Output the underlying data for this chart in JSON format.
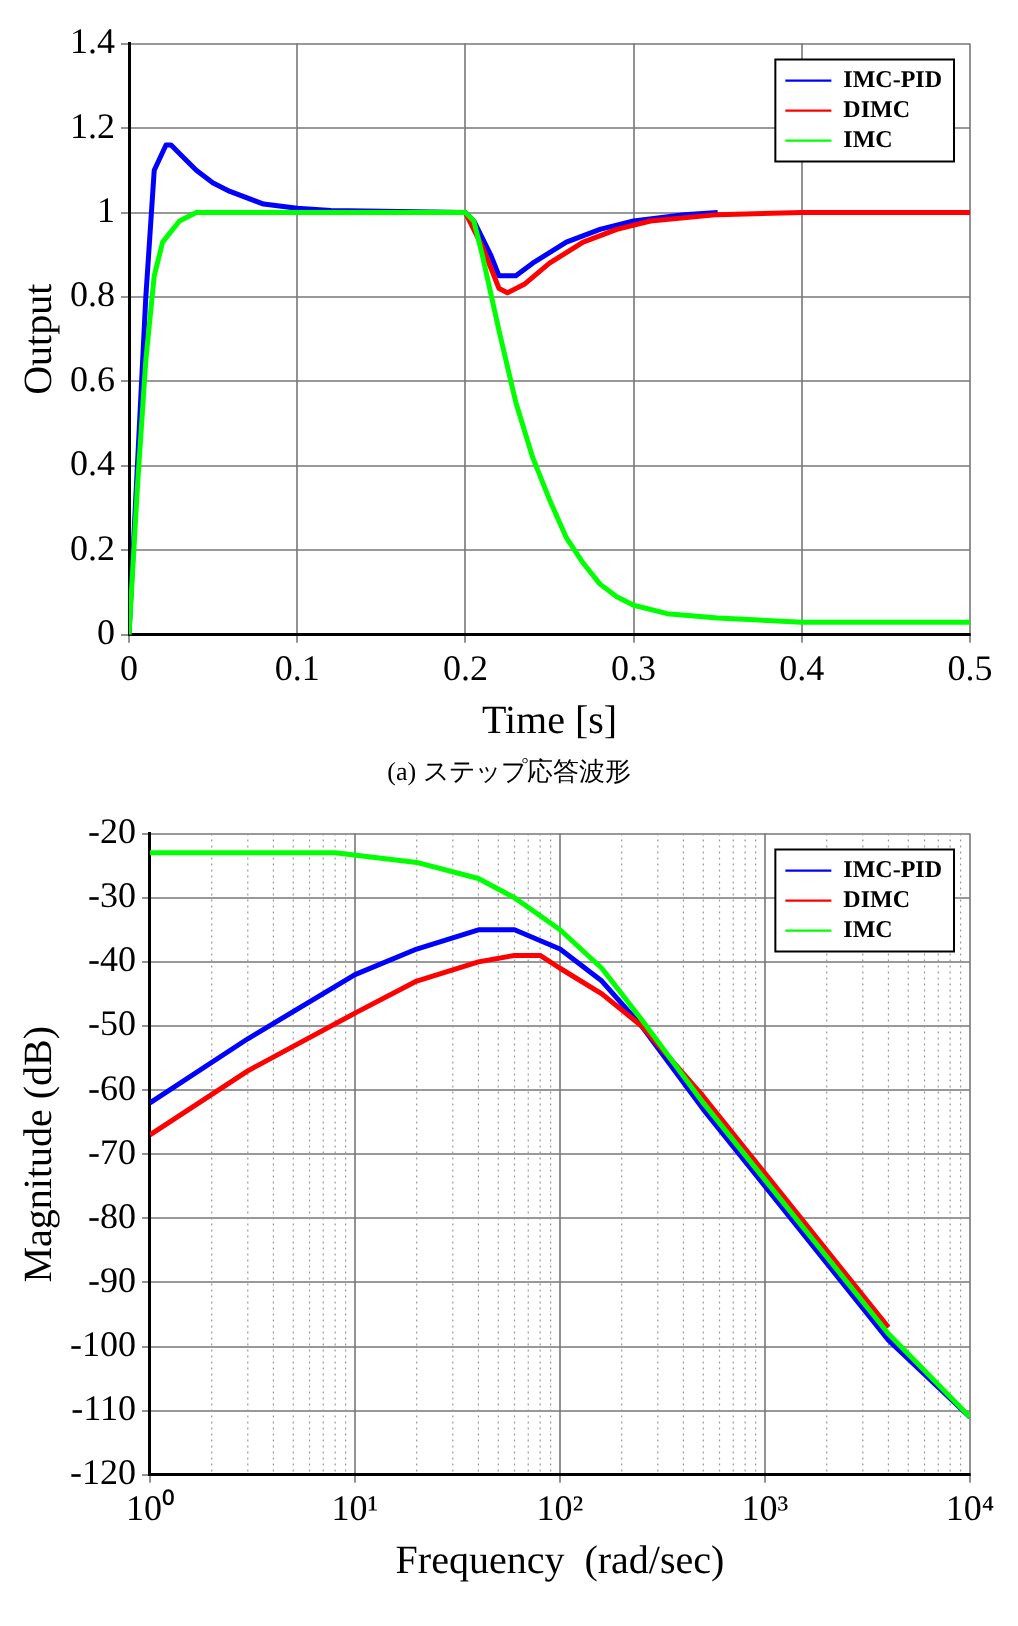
{
  "chart_data": [
    {
      "type": "line",
      "xlabel": "Time [s]",
      "ylabel": "Output",
      "annotations": [
        "(a) ステップ応答波形"
      ],
      "xlim": [
        0,
        0.5
      ],
      "ylim": [
        0,
        1.4
      ],
      "xticks": [
        0,
        0.1,
        0.2,
        0.3,
        0.4,
        0.5
      ],
      "yticks": [
        0,
        0.2,
        0.4,
        0.6,
        0.8,
        1,
        1.2,
        1.4
      ],
      "grid": true,
      "legend": "top right",
      "line_style": "solid",
      "marker": "none",
      "series": [
        {
          "name": "IMC-PID",
          "color": "#0000ff",
          "x": [
            0,
            0.005,
            0.01,
            0.015,
            0.022,
            0.025,
            0.03,
            0.04,
            0.05,
            0.06,
            0.08,
            0.1,
            0.12,
            0.2,
            0.205,
            0.215,
            0.22,
            0.23,
            0.24,
            0.26,
            0.28,
            0.3,
            0.33,
            0.35
          ],
          "values": [
            0,
            0.4,
            0.8,
            1.1,
            1.16,
            1.16,
            1.14,
            1.1,
            1.07,
            1.05,
            1.02,
            1.01,
            1.005,
            1,
            0.98,
            0.9,
            0.85,
            0.85,
            0.88,
            0.93,
            0.96,
            0.98,
            0.995,
            1
          ]
        },
        {
          "name": "DIMC",
          "color": "#ff0000",
          "x": [
            0.2,
            0.21,
            0.22,
            0.225,
            0.235,
            0.25,
            0.27,
            0.29,
            0.31,
            0.35,
            0.4,
            0.5
          ],
          "values": [
            1,
            0.92,
            0.82,
            0.81,
            0.83,
            0.88,
            0.93,
            0.96,
            0.98,
            0.995,
            1,
            1
          ]
        },
        {
          "name": "IMC",
          "color": "#00ff00",
          "x": [
            0,
            0.005,
            0.01,
            0.015,
            0.02,
            0.03,
            0.04,
            0.2,
            0.205,
            0.21,
            0.22,
            0.23,
            0.24,
            0.25,
            0.26,
            0.27,
            0.28,
            0.29,
            0.3,
            0.32,
            0.35,
            0.4,
            0.5
          ],
          "values": [
            0,
            0.35,
            0.65,
            0.85,
            0.93,
            0.98,
            1,
            1,
            0.98,
            0.9,
            0.72,
            0.55,
            0.42,
            0.32,
            0.23,
            0.17,
            0.12,
            0.09,
            0.07,
            0.05,
            0.04,
            0.03,
            0.03
          ]
        }
      ]
    },
    {
      "type": "line",
      "xlabel": "Frequency  (rad/sec)",
      "ylabel": "Magnitude (dB)",
      "log": "x",
      "xlim": [
        1,
        10000
      ],
      "ylim": [
        -120,
        -20
      ],
      "xticks": [
        {
          "value": 1,
          "label": "10⁰"
        },
        {
          "value": 10,
          "label": "10¹"
        },
        {
          "value": 100,
          "label": "10²"
        },
        {
          "value": 1000,
          "label": "10³"
        },
        {
          "value": 10000,
          "label": "10⁴"
        }
      ],
      "yticks": [
        -120,
        -110,
        -100,
        -90,
        -80,
        -70,
        -60,
        -50,
        -40,
        -30,
        -20
      ],
      "grid": true,
      "legend": "top right",
      "line_style": "solid",
      "marker": "none",
      "series": [
        {
          "name": "IMC-PID",
          "color": "#0000ff",
          "x": [
            1,
            3,
            10,
            20,
            40,
            60,
            100,
            160,
            250,
            500,
            1000,
            2000,
            4000,
            10000
          ],
          "values": [
            -62,
            -52,
            -42,
            -38,
            -35,
            -35,
            -38,
            -43,
            -50,
            -63,
            -75,
            -87,
            -99,
            -111
          ]
        },
        {
          "name": "DIMC",
          "color": "#ff0000",
          "x": [
            1,
            3,
            10,
            20,
            40,
            60,
            80,
            100,
            160,
            250,
            500,
            1000,
            2000,
            4000
          ],
          "values": [
            -67,
            -57,
            -48,
            -43,
            -40,
            -39,
            -39,
            -41,
            -45,
            -50,
            -61,
            -73,
            -85,
            -97
          ]
        },
        {
          "name": "IMC",
          "color": "#00ff00",
          "x": [
            1,
            8,
            20,
            40,
            60,
            100,
            160,
            250,
            500,
            1000,
            2000,
            4000,
            10000
          ],
          "values": [
            -23,
            -23,
            -24.5,
            -27,
            -30,
            -35,
            -41,
            -49,
            -62,
            -74,
            -86,
            -98,
            -111
          ]
        }
      ]
    }
  ]
}
